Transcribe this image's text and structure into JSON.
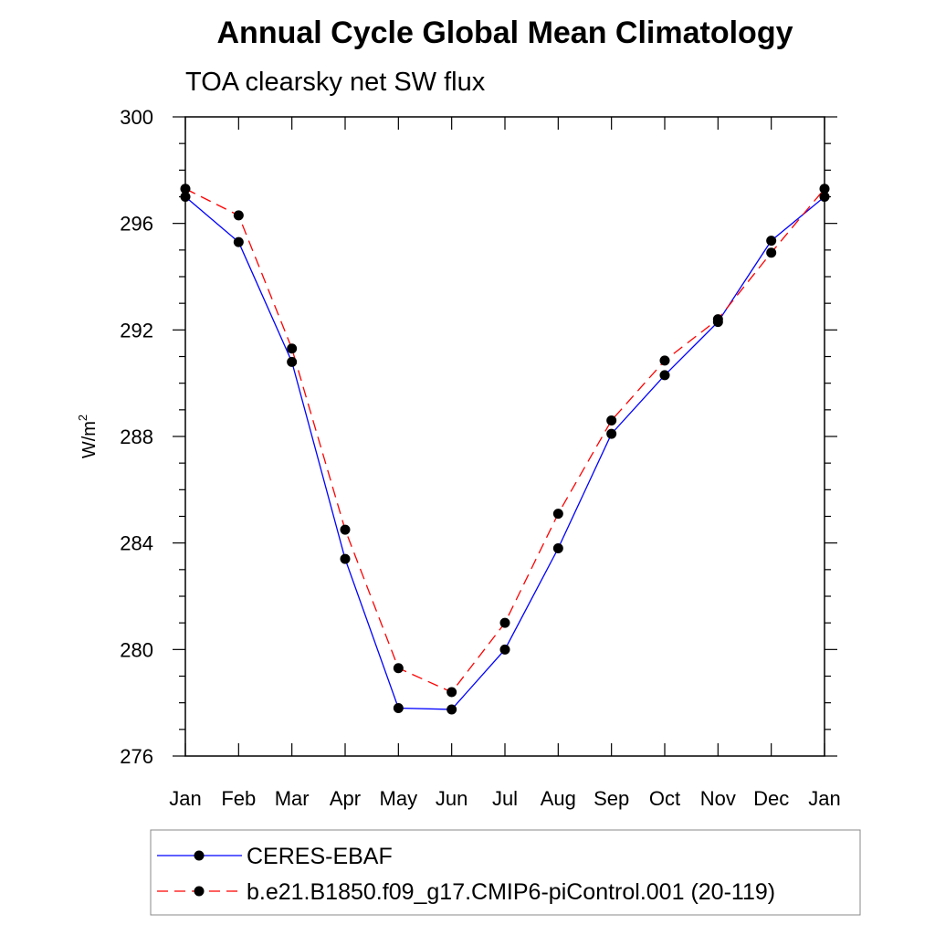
{
  "chart_data": {
    "type": "line",
    "title": "Annual Cycle Global Mean Climatology",
    "subtitle": "TOA clearsky net SW flux",
    "ylabel_base": "W/m",
    "ylabel_sup": "2",
    "categories": [
      "Jan",
      "Feb",
      "Mar",
      "Apr",
      "May",
      "Jun",
      "Jul",
      "Aug",
      "Sep",
      "Oct",
      "Nov",
      "Dec",
      "Jan"
    ],
    "ylim": [
      276,
      300
    ],
    "yticks": [
      276,
      280,
      284,
      288,
      292,
      296,
      300
    ],
    "series": [
      {
        "name": "CERES-EBAF",
        "color": "#0000ff",
        "dash": "solid",
        "values": [
          297.0,
          295.3,
          290.8,
          283.4,
          277.8,
          277.75,
          280.0,
          283.8,
          288.1,
          290.3,
          292.3,
          295.35,
          297.0
        ]
      },
      {
        "name": "b.e21.B1850.f09_g17.CMIP6-piControl.001 (20-119)",
        "color": "#ff0000",
        "dash": "dashed",
        "values": [
          297.3,
          296.3,
          291.3,
          284.5,
          279.3,
          278.4,
          281.0,
          285.1,
          288.6,
          290.85,
          292.4,
          294.9,
          297.3
        ]
      }
    ],
    "legend_position": "bottom",
    "grid": false
  }
}
